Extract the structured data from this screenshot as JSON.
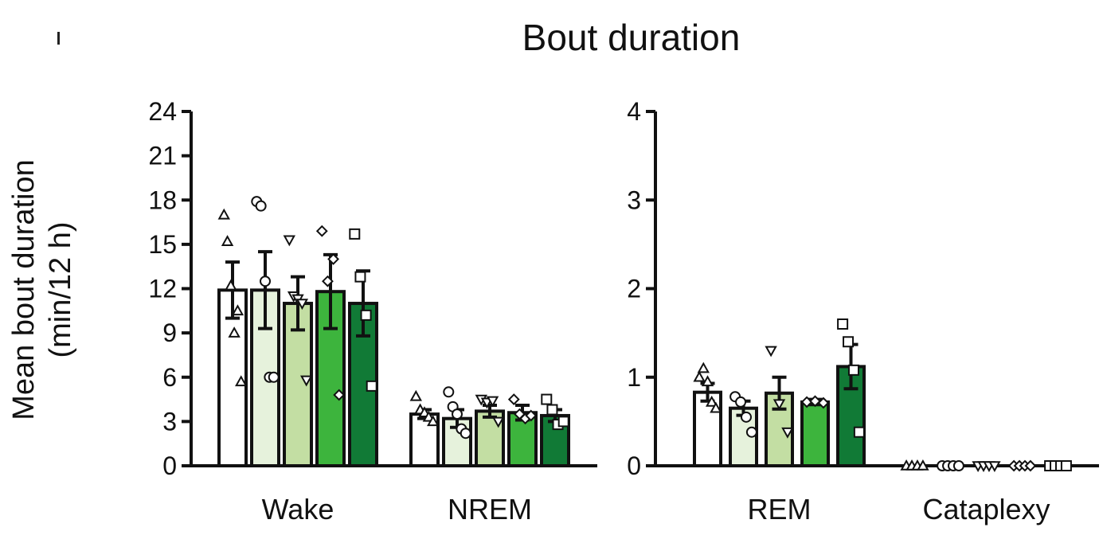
{
  "title": "Bout duration",
  "ylabel_line1": "Mean bout duration",
  "ylabel_line2": "(min/12 h)",
  "colors": [
    "#ffffff",
    "#e6f2dc",
    "#c3dea3",
    "#3db43d",
    "#117a36"
  ],
  "chart_data": [
    {
      "type": "bar",
      "categories": [
        "Wake",
        "NREM"
      ],
      "ylim": [
        0,
        24
      ],
      "yticks": [
        0,
        3,
        6,
        9,
        12,
        15,
        18,
        21,
        24
      ],
      "groups": [
        {
          "category": "Wake",
          "bars": [
            {
              "value": 11.9,
              "err": 1.9,
              "marker": "triangle-up",
              "points": [
                17.0,
                15.2,
                12.2,
                9.0,
                10.5,
                5.7
              ]
            },
            {
              "value": 11.9,
              "err": 2.6,
              "marker": "circle",
              "points": [
                17.9,
                17.6,
                12.5,
                6.0,
                6.0
              ]
            },
            {
              "value": 11.0,
              "err": 1.8,
              "marker": "triangle-down",
              "points": [
                15.3,
                11.5,
                11.3,
                11.0,
                5.8
              ]
            },
            {
              "value": 11.8,
              "err": 2.5,
              "marker": "diamond",
              "points": [
                15.9,
                12.5,
                14.0,
                4.8
              ]
            },
            {
              "value": 11.0,
              "err": 2.2,
              "marker": "square",
              "points": [
                15.7,
                12.8,
                10.2,
                5.4
              ]
            }
          ]
        },
        {
          "category": "NREM",
          "bars": [
            {
              "value": 3.5,
              "err": 0.3,
              "marker": "triangle-up",
              "points": [
                4.7,
                3.8,
                3.6,
                3.3,
                3.0
              ]
            },
            {
              "value": 3.2,
              "err": 0.6,
              "marker": "circle",
              "points": [
                5.0,
                4.0,
                3.5,
                2.5,
                2.2
              ]
            },
            {
              "value": 3.7,
              "err": 0.4,
              "marker": "triangle-down",
              "points": [
                4.5,
                4.3,
                4.4,
                3.0
              ]
            },
            {
              "value": 3.6,
              "err": 0.5,
              "marker": "diamond",
              "points": [
                4.5,
                3.5,
                3.2,
                3.4
              ]
            },
            {
              "value": 3.4,
              "err": 0.4,
              "marker": "square",
              "points": [
                4.5,
                3.8,
                2.8,
                3.0
              ]
            }
          ]
        }
      ]
    },
    {
      "type": "bar",
      "categories": [
        "REM",
        "Cataplexy"
      ],
      "ylim": [
        0,
        4
      ],
      "yticks": [
        0,
        1,
        2,
        3,
        4
      ],
      "groups": [
        {
          "category": "REM",
          "bars": [
            {
              "value": 0.83,
              "err": 0.1,
              "marker": "triangle-up",
              "points": [
                1.0,
                1.1,
                0.95,
                0.72,
                0.65
              ]
            },
            {
              "value": 0.65,
              "err": 0.08,
              "marker": "circle",
              "points": [
                0.78,
                0.72,
                0.55,
                0.38
              ]
            },
            {
              "value": 0.82,
              "err": 0.18,
              "marker": "triangle-down",
              "points": [
                1.3,
                0.7,
                0.38
              ]
            },
            {
              "value": 0.72,
              "err": 0.03,
              "marker": "diamond",
              "points": [
                0.72,
                0.73,
                0.71
              ]
            },
            {
              "value": 1.12,
              "err": 0.25,
              "marker": "square",
              "points": [
                1.6,
                1.4,
                1.08,
                0.38
              ]
            }
          ]
        },
        {
          "category": "Cataplexy",
          "bars": [
            {
              "value": 0,
              "err": 0,
              "marker": "triangle-up",
              "points": [
                0,
                0,
                0,
                0
              ]
            },
            {
              "value": 0,
              "err": 0,
              "marker": "circle",
              "points": [
                0,
                0,
                0,
                0
              ]
            },
            {
              "value": 0,
              "err": 0,
              "marker": "triangle-down",
              "points": [
                0,
                0,
                0,
                0
              ]
            },
            {
              "value": 0,
              "err": 0,
              "marker": "diamond",
              "points": [
                0,
                0,
                0,
                0
              ]
            },
            {
              "value": 0,
              "err": 0,
              "marker": "square",
              "points": [
                0,
                0,
                0,
                0
              ]
            }
          ]
        }
      ]
    }
  ]
}
